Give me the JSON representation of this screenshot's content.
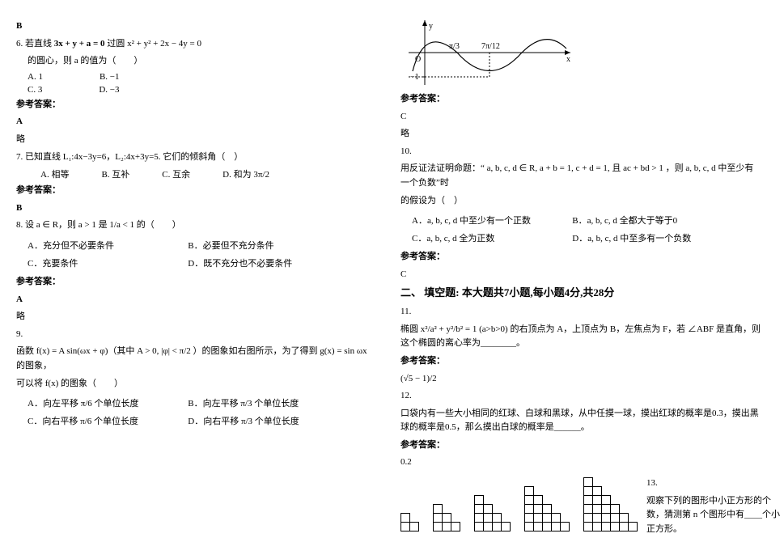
{
  "left": {
    "b1": "B",
    "q6": {
      "stem_a": "6. 若直线",
      "eq1": "3x + y + a = 0",
      "stem_b": "过圆",
      "eq2": "x² + y² + 2x − 4y = 0",
      "stem_c": "的圆心，则 a 的值为（　　）",
      "A": "A. 1",
      "B": "B. −1",
      "C": "C. 3",
      "D": "D. −3"
    },
    "ans_label": "参考答案：",
    "a6": "A",
    "a6b": "略",
    "q7": {
      "stem": "7. 已知直线 L₁:4x−3y=6，L₂:4x+3y=5. 它们的倾斜角（　）",
      "A": "A. 相等",
      "B": "B. 互补",
      "C": "C. 互余",
      "D": "D. 和为 3π/2"
    },
    "a7": "B",
    "q8": {
      "stem_a": "8. 设 a ∈ R，则 a > 1 是",
      "frac": "1/a < 1",
      "stem_b": "的（　　）",
      "A": "A．充分但不必要条件",
      "B": "B．必要但不充分条件",
      "C": "C．充要条件",
      "D": "D．既不充分也不必要条件"
    },
    "a8": "A",
    "a8b": "略",
    "q9": {
      "num": "9.",
      "stem_a": "函数 f(x) = A sin(ωx + φ)（其中",
      "cond": "A > 0, |φ| < π/2",
      "stem_b": "）的图象如右图所示，为了得到 g(x) = sin ωx 的图象，",
      "stem_c": "可以将 f(x) 的图象（　　）",
      "A": "A．向左平移 π/6 个单位长度",
      "B": "B．向左平移 π/3 个单位长度",
      "C": "C．向右平移 π/6 个单位长度",
      "D": "D．向右平移 π/3 个单位长度"
    }
  },
  "right": {
    "plot": {
      "y": "y",
      "o": "O",
      "x": "x",
      "t1": "π/3",
      "t2": "7π/12",
      "m1": "−1"
    },
    "ans_label": "参考答案：",
    "a9": "C",
    "a9b": "略",
    "q10": {
      "num": "10.",
      "stem_a": "用反证法证明命题：“",
      "cond": "a, b, c, d ∈ R, a + b = 1, c + d = 1, 且 ac + bd > 1",
      "stem_b": "，则 a, b, c, d 中至少有一个负数”时",
      "stem_c": "的假设为（　）",
      "A": "A．a, b, c, d 中至少有一个正数",
      "B": "B．a, b, c, d 全都大于等于0",
      "C": "C．a, b, c, d 全为正数",
      "D": "D．a, b, c, d 中至多有一个负数"
    },
    "a10": "C",
    "section2": "二、 填空题: 本大题共7小题,每小题4分,共28分",
    "q11": {
      "num": "11.",
      "stem": "椭圆 x²/a² + y²/b² = 1 (a>b>0) 的右顶点为 A，上顶点为 B，左焦点为 F，若 ∠ABF 是直角，则这个椭圆的离心率为________。"
    },
    "a11": "(√5 − 1)/2",
    "q12": {
      "num": "12.",
      "stem": "口袋内有一些大小相同的红球、白球和黑球，从中任摸一球，摸出红球的概率是0.3，摸出黑球的概率是0.5，那么摸出白球的概率是______。"
    },
    "a12": "0.2",
    "q13": {
      "num": "13.",
      "stem": "观察下列的图形中小正方形的个数，猜测第 n 个图形中有____个小正方形。"
    }
  }
}
